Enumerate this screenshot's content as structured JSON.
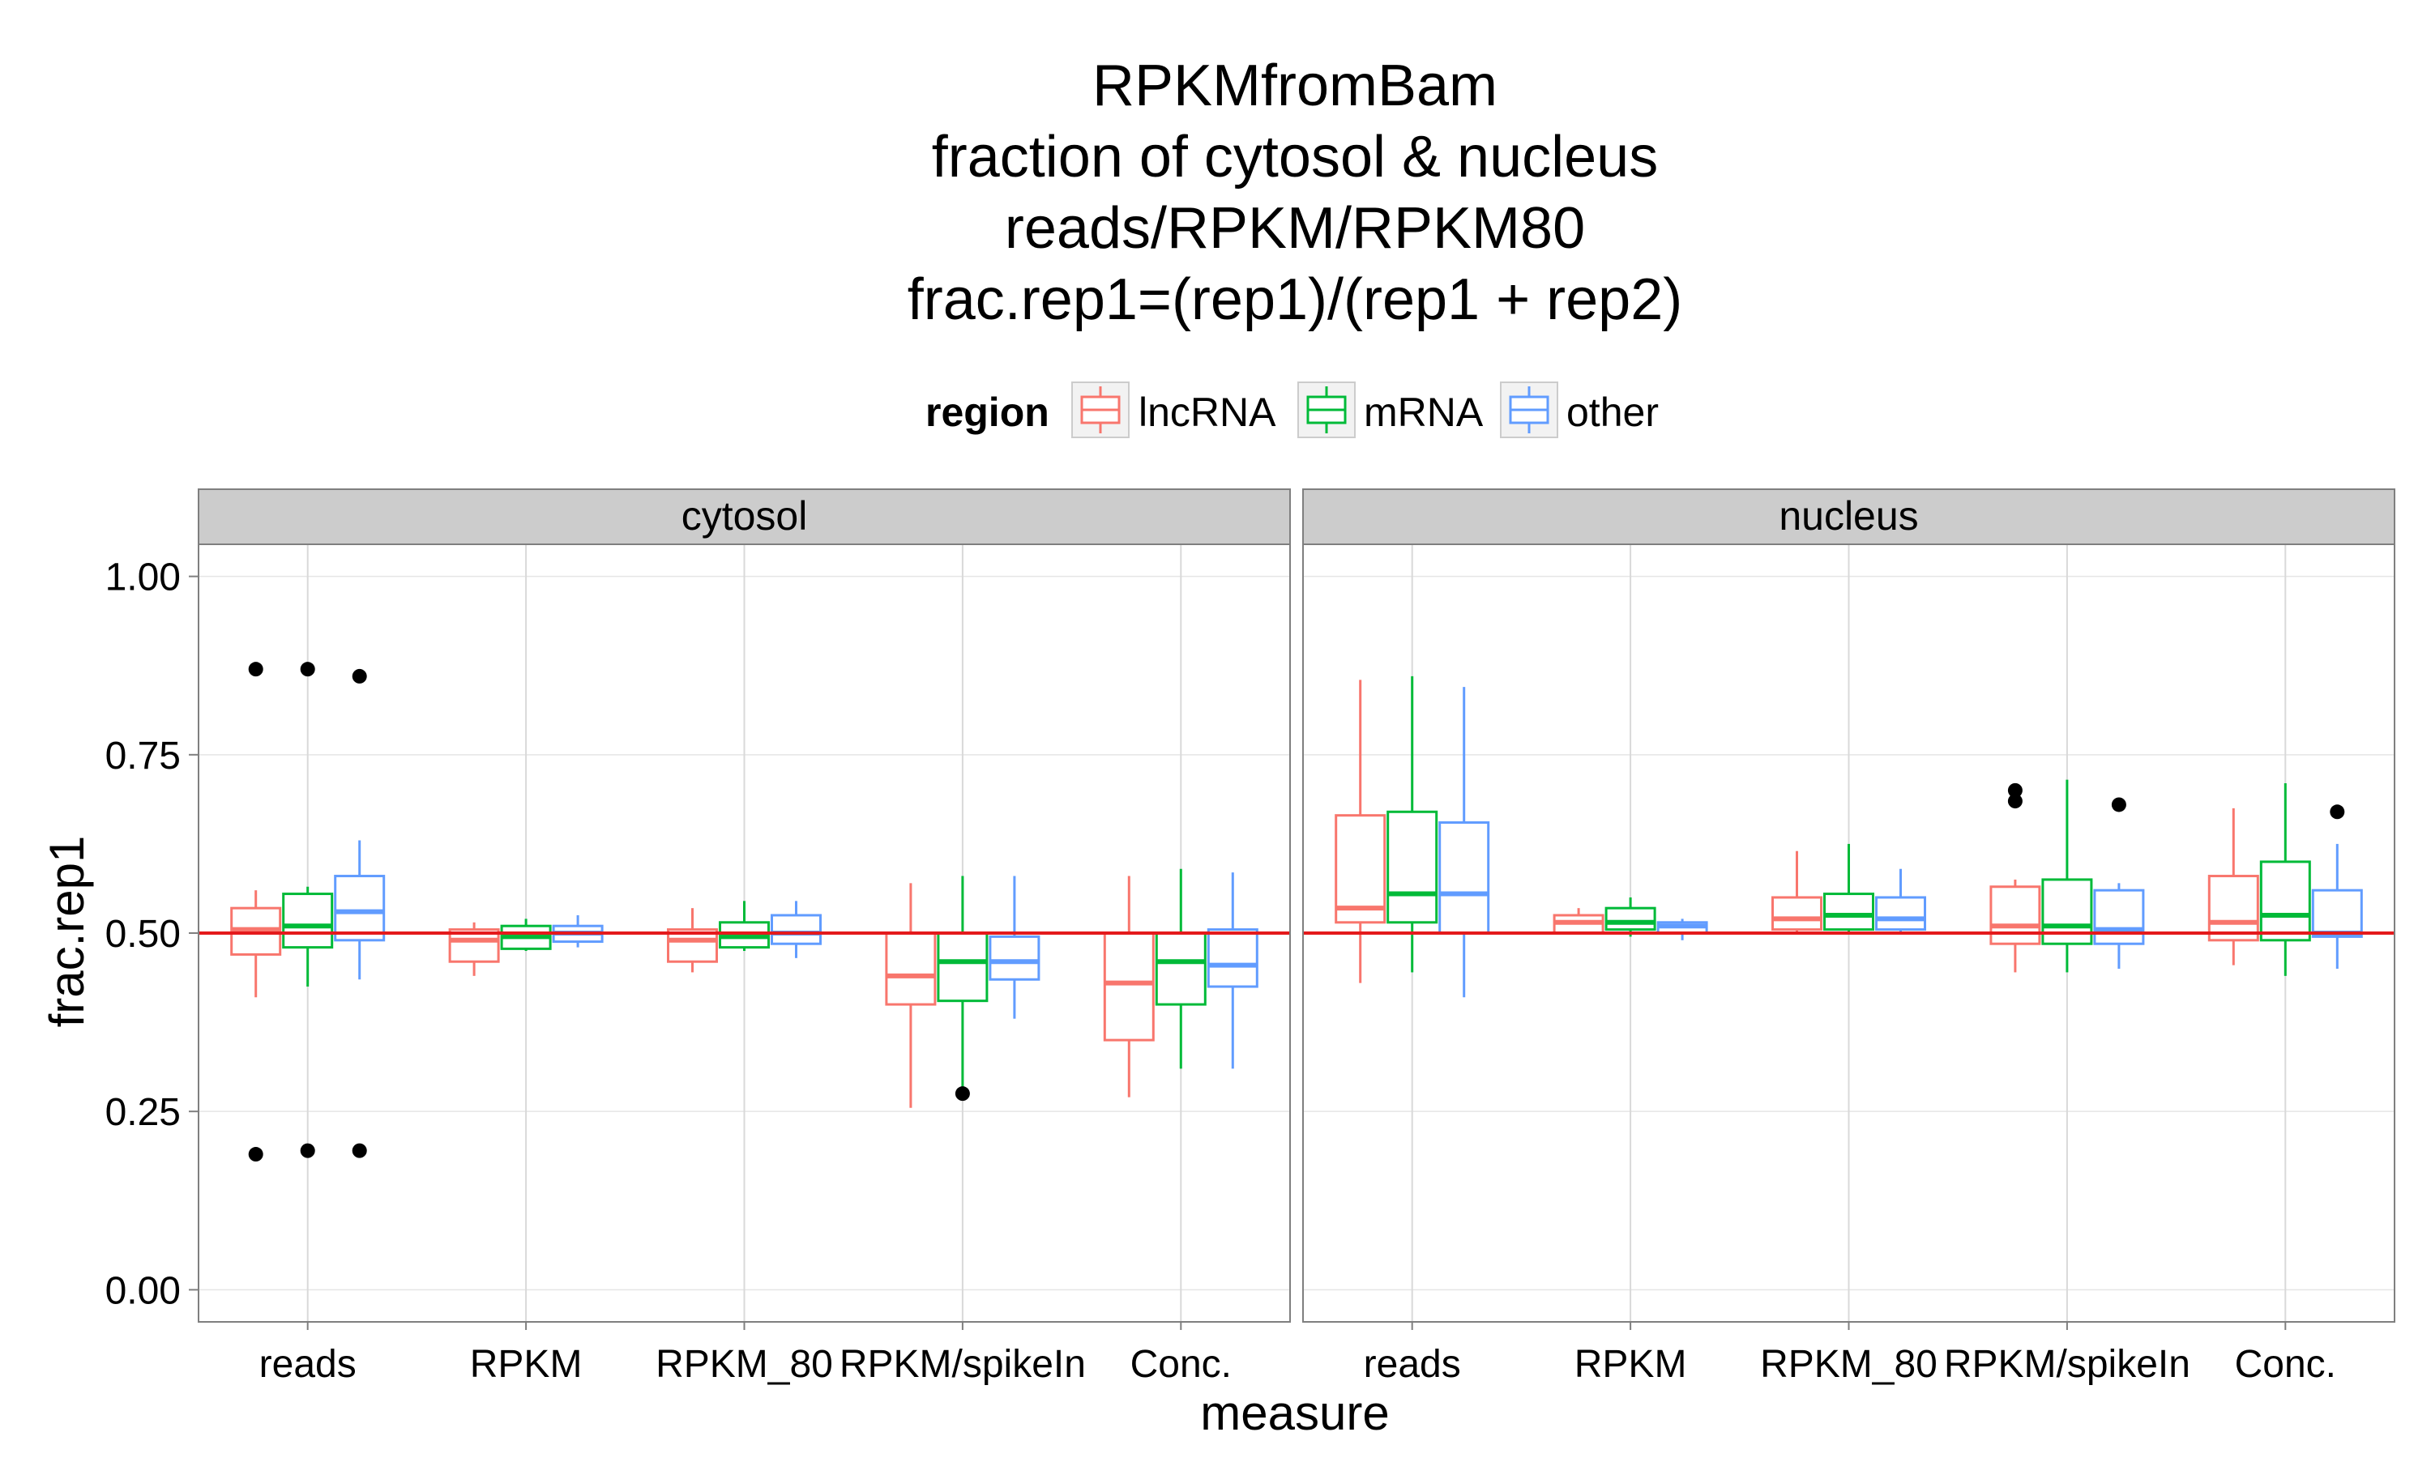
{
  "chart_data": {
    "type": "boxplot",
    "title_lines": [
      "RPKMfromBam",
      "fraction of cytosol & nucleus",
      "reads/RPKM/RPKM80",
      "frac.rep1=(rep1)/(rep1 + rep2)"
    ],
    "xlabel": "measure",
    "ylabel": "frac.rep1",
    "ylim": [
      -0.045,
      1.045
    ],
    "yticks": [
      0.0,
      0.25,
      0.5,
      0.75,
      1.0
    ],
    "ytick_labels": [
      "0.00",
      "0.25",
      "0.50",
      "0.75",
      "1.00"
    ],
    "reference_line": 0.5,
    "reference_color": "#e41a1c",
    "categories": [
      "reads",
      "RPKM",
      "RPKM_80",
      "RPKM/spikeIn",
      "Conc."
    ],
    "legend": {
      "title": "region",
      "position": "top",
      "items": [
        {
          "label": "lncRNA",
          "color": "#F8766D"
        },
        {
          "label": "mRNA",
          "color": "#00BA38"
        },
        {
          "label": "other",
          "color": "#619CFF"
        }
      ]
    },
    "panels": [
      {
        "name": "cytosol",
        "groups": [
          {
            "category": "reads",
            "boxes": [
              {
                "region": "lncRNA",
                "lw": 0.41,
                "q1": 0.47,
                "med": 0.505,
                "q3": 0.535,
                "uw": 0.56,
                "outliers": [
                  0.87,
                  0.19
                ]
              },
              {
                "region": "mRNA",
                "lw": 0.425,
                "q1": 0.48,
                "med": 0.51,
                "q3": 0.555,
                "uw": 0.565,
                "outliers": [
                  0.87,
                  0.195
                ]
              },
              {
                "region": "other",
                "lw": 0.435,
                "q1": 0.49,
                "med": 0.53,
                "q3": 0.58,
                "uw": 0.63,
                "outliers": [
                  0.86,
                  0.195
                ]
              }
            ]
          },
          {
            "category": "RPKM",
            "boxes": [
              {
                "region": "lncRNA",
                "lw": 0.44,
                "q1": 0.46,
                "med": 0.49,
                "q3": 0.505,
                "uw": 0.515,
                "outliers": []
              },
              {
                "region": "mRNA",
                "lw": 0.475,
                "q1": 0.478,
                "med": 0.495,
                "q3": 0.51,
                "uw": 0.52,
                "outliers": []
              },
              {
                "region": "other",
                "lw": 0.48,
                "q1": 0.488,
                "med": 0.5,
                "q3": 0.51,
                "uw": 0.525,
                "outliers": []
              }
            ]
          },
          {
            "category": "RPKM_80",
            "boxes": [
              {
                "region": "lncRNA",
                "lw": 0.445,
                "q1": 0.46,
                "med": 0.49,
                "q3": 0.505,
                "uw": 0.535,
                "outliers": []
              },
              {
                "region": "mRNA",
                "lw": 0.475,
                "q1": 0.48,
                "med": 0.495,
                "q3": 0.515,
                "uw": 0.545,
                "outliers": []
              },
              {
                "region": "other",
                "lw": 0.465,
                "q1": 0.485,
                "med": 0.5,
                "q3": 0.525,
                "uw": 0.545,
                "outliers": []
              }
            ]
          },
          {
            "category": "RPKM/spikeIn",
            "boxes": [
              {
                "region": "lncRNA",
                "lw": 0.255,
                "q1": 0.4,
                "med": 0.44,
                "q3": 0.5,
                "uw": 0.57,
                "outliers": []
              },
              {
                "region": "mRNA",
                "lw": 0.28,
                "q1": 0.405,
                "med": 0.46,
                "q3": 0.5,
                "uw": 0.58,
                "outliers": [
                  0.275
                ]
              },
              {
                "region": "other",
                "lw": 0.38,
                "q1": 0.435,
                "med": 0.46,
                "q3": 0.495,
                "uw": 0.58,
                "outliers": []
              }
            ]
          },
          {
            "category": "Conc.",
            "boxes": [
              {
                "region": "lncRNA",
                "lw": 0.27,
                "q1": 0.35,
                "med": 0.43,
                "q3": 0.5,
                "uw": 0.58,
                "outliers": []
              },
              {
                "region": "mRNA",
                "lw": 0.31,
                "q1": 0.4,
                "med": 0.46,
                "q3": 0.5,
                "uw": 0.59,
                "outliers": []
              },
              {
                "region": "other",
                "lw": 0.31,
                "q1": 0.425,
                "med": 0.455,
                "q3": 0.505,
                "uw": 0.585,
                "outliers": []
              }
            ]
          }
        ]
      },
      {
        "name": "nucleus",
        "groups": [
          {
            "category": "reads",
            "boxes": [
              {
                "region": "lncRNA",
                "lw": 0.43,
                "q1": 0.515,
                "med": 0.535,
                "q3": 0.665,
                "uw": 0.855,
                "outliers": []
              },
              {
                "region": "mRNA",
                "lw": 0.445,
                "q1": 0.515,
                "med": 0.555,
                "q3": 0.67,
                "uw": 0.86,
                "outliers": []
              },
              {
                "region": "other",
                "lw": 0.41,
                "q1": 0.5,
                "med": 0.555,
                "q3": 0.655,
                "uw": 0.845,
                "outliers": []
              }
            ]
          },
          {
            "category": "RPKM",
            "boxes": [
              {
                "region": "lncRNA",
                "lw": 0.5,
                "q1": 0.5,
                "med": 0.515,
                "q3": 0.525,
                "uw": 0.535,
                "outliers": []
              },
              {
                "region": "mRNA",
                "lw": 0.495,
                "q1": 0.505,
                "med": 0.515,
                "q3": 0.535,
                "uw": 0.55,
                "outliers": []
              },
              {
                "region": "other",
                "lw": 0.49,
                "q1": 0.5,
                "med": 0.51,
                "q3": 0.515,
                "uw": 0.52,
                "outliers": []
              }
            ]
          },
          {
            "category": "RPKM_80",
            "boxes": [
              {
                "region": "lncRNA",
                "lw": 0.5,
                "q1": 0.505,
                "med": 0.52,
                "q3": 0.55,
                "uw": 0.615,
                "outliers": []
              },
              {
                "region": "mRNA",
                "lw": 0.5,
                "q1": 0.505,
                "med": 0.525,
                "q3": 0.555,
                "uw": 0.625,
                "outliers": []
              },
              {
                "region": "other",
                "lw": 0.5,
                "q1": 0.505,
                "med": 0.52,
                "q3": 0.55,
                "uw": 0.59,
                "outliers": []
              }
            ]
          },
          {
            "category": "RPKM/spikeIn",
            "boxes": [
              {
                "region": "lncRNA",
                "lw": 0.445,
                "q1": 0.485,
                "med": 0.51,
                "q3": 0.565,
                "uw": 0.575,
                "outliers": [
                  0.7,
                  0.685
                ]
              },
              {
                "region": "mRNA",
                "lw": 0.445,
                "q1": 0.485,
                "med": 0.51,
                "q3": 0.575,
                "uw": 0.715,
                "outliers": []
              },
              {
                "region": "other",
                "lw": 0.45,
                "q1": 0.485,
                "med": 0.505,
                "q3": 0.56,
                "uw": 0.57,
                "outliers": [
                  0.68
                ]
              }
            ]
          },
          {
            "category": "Conc.",
            "boxes": [
              {
                "region": "lncRNA",
                "lw": 0.455,
                "q1": 0.49,
                "med": 0.515,
                "q3": 0.58,
                "uw": 0.675,
                "outliers": []
              },
              {
                "region": "mRNA",
                "lw": 0.44,
                "q1": 0.49,
                "med": 0.525,
                "q3": 0.6,
                "uw": 0.71,
                "outliers": []
              },
              {
                "region": "other",
                "lw": 0.45,
                "q1": 0.495,
                "med": 0.5,
                "q3": 0.56,
                "uw": 0.625,
                "outliers": [
                  0.67
                ]
              }
            ]
          }
        ]
      }
    ]
  }
}
